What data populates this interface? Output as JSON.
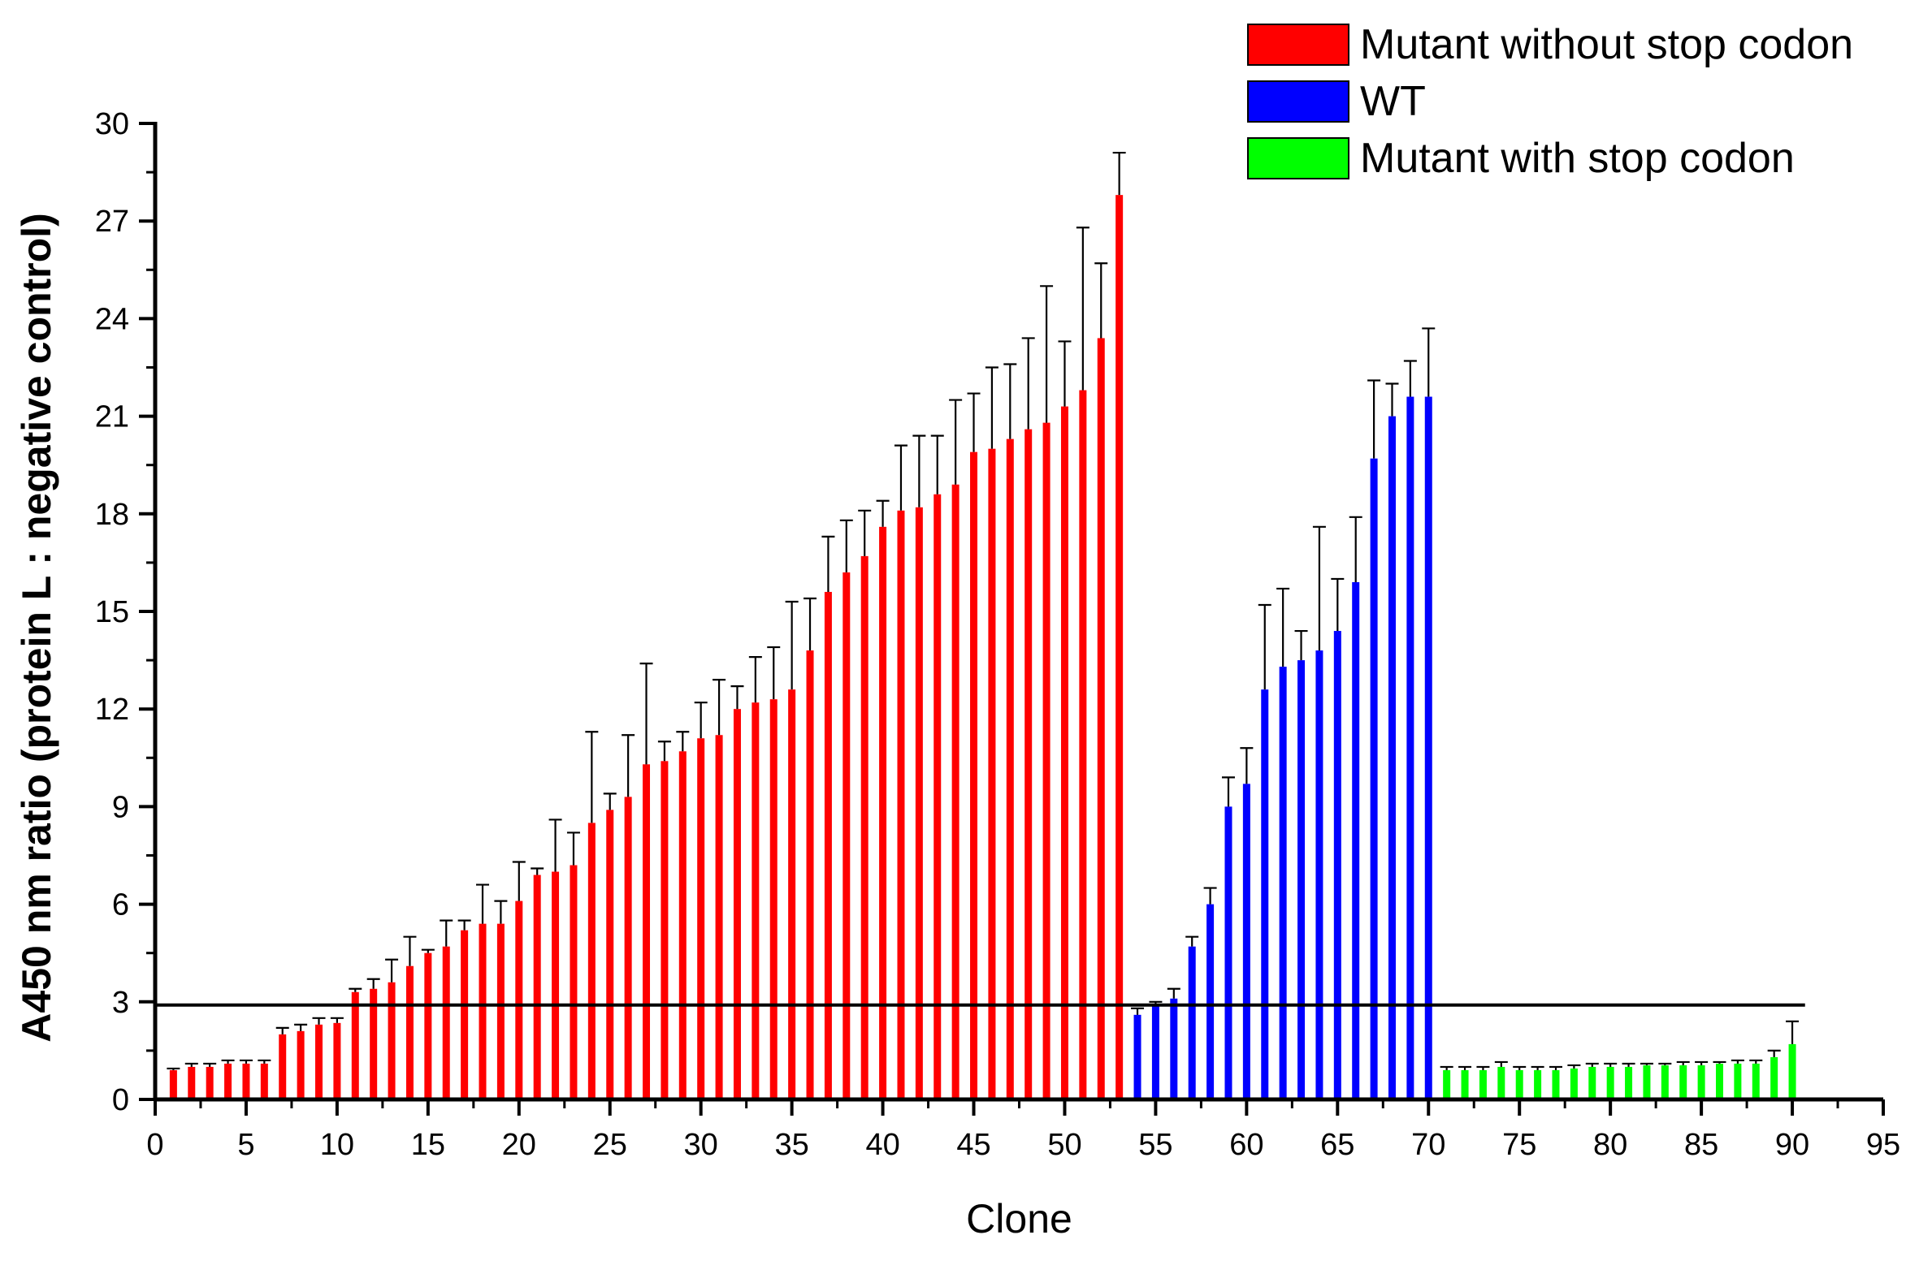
{
  "chart_data": {
    "type": "bar",
    "xlabel": "Clone",
    "ylabel": "A450 nm ratio (protein L : negative control)",
    "xlim": [
      0,
      95
    ],
    "ylim": [
      0,
      30
    ],
    "xticks": [
      "0",
      "5",
      "10",
      "15",
      "20",
      "25",
      "30",
      "35",
      "40",
      "45",
      "50",
      "55",
      "60",
      "65",
      "70",
      "75",
      "80",
      "85",
      "90",
      "95"
    ],
    "yticks": [
      "0",
      "3",
      "6",
      "9",
      "12",
      "15",
      "18",
      "21",
      "24",
      "27",
      "30"
    ],
    "threshold": 2.9,
    "legend_position": "top-right",
    "grid": false,
    "series": [
      {
        "name": "Mutant without stop codon",
        "color": "#ff0000",
        "x": [
          1,
          2,
          3,
          4,
          5,
          6,
          7,
          8,
          9,
          10,
          11,
          12,
          13,
          14,
          15,
          16,
          17,
          18,
          19,
          20,
          21,
          22,
          23,
          24,
          25,
          26,
          27,
          28,
          29,
          30,
          31,
          32,
          33,
          34,
          35,
          36,
          37,
          38,
          39,
          40,
          41,
          42,
          43,
          44,
          45,
          46,
          47,
          48,
          49,
          50,
          51,
          52,
          53
        ],
        "values": [
          0.9,
          1.0,
          1.0,
          1.1,
          1.1,
          1.1,
          2.0,
          2.1,
          2.3,
          2.35,
          3.3,
          3.4,
          3.6,
          4.1,
          4.5,
          4.7,
          5.2,
          5.4,
          5.4,
          6.1,
          6.9,
          7.0,
          7.2,
          8.5,
          8.9,
          9.3,
          10.3,
          10.4,
          10.7,
          11.1,
          11.2,
          12.0,
          12.2,
          12.3,
          12.6,
          13.8,
          15.6,
          16.2,
          16.7,
          17.6,
          18.1,
          18.2,
          18.6,
          18.9,
          19.9,
          20.0,
          20.3,
          20.6,
          20.8,
          21.3,
          21.8,
          23.4,
          27.8
        ],
        "errors": [
          0.05,
          0.1,
          0.1,
          0.1,
          0.1,
          0.1,
          0.2,
          0.2,
          0.2,
          0.15,
          0.1,
          0.3,
          0.7,
          0.9,
          0.1,
          0.8,
          0.3,
          1.2,
          0.7,
          1.2,
          0.2,
          1.6,
          1.0,
          2.8,
          0.5,
          1.9,
          3.1,
          0.6,
          0.6,
          1.1,
          1.7,
          0.7,
          1.4,
          1.6,
          2.7,
          1.6,
          1.7,
          1.6,
          1.4,
          0.8,
          2.0,
          2.2,
          1.8,
          2.6,
          1.8,
          2.5,
          2.3,
          2.8,
          4.2,
          2.0,
          5.0,
          2.3,
          1.3
        ]
      },
      {
        "name": "WT",
        "color": "#0000ff",
        "x": [
          54,
          55,
          56,
          57,
          58,
          59,
          60,
          61,
          62,
          63,
          64,
          65,
          66,
          67,
          68,
          69,
          70
        ],
        "values": [
          2.6,
          2.9,
          3.1,
          4.7,
          6.0,
          9.0,
          9.7,
          12.6,
          13.3,
          13.5,
          13.8,
          14.4,
          15.9,
          19.7,
          21.0,
          21.6,
          21.6
        ],
        "errors": [
          0.2,
          0.1,
          0.3,
          0.3,
          0.5,
          0.9,
          1.1,
          2.6,
          2.4,
          0.9,
          3.8,
          1.6,
          2.0,
          2.4,
          1.0,
          1.1,
          2.1
        ]
      },
      {
        "name": "Mutant with stop codon",
        "color": "#00ff00",
        "x": [
          71,
          72,
          73,
          74,
          75,
          76,
          77,
          78,
          79,
          80,
          81,
          82,
          83,
          84,
          85,
          86,
          87,
          88,
          89,
          90
        ],
        "values": [
          0.9,
          0.9,
          0.9,
          1.0,
          0.9,
          0.9,
          0.9,
          0.95,
          1.0,
          1.0,
          1.0,
          1.05,
          1.05,
          1.05,
          1.05,
          1.1,
          1.1,
          1.1,
          1.3,
          1.7
        ],
        "errors": [
          0.1,
          0.1,
          0.1,
          0.15,
          0.1,
          0.1,
          0.1,
          0.1,
          0.1,
          0.1,
          0.1,
          0.05,
          0.05,
          0.1,
          0.1,
          0.05,
          0.1,
          0.1,
          0.2,
          0.7
        ]
      }
    ]
  }
}
